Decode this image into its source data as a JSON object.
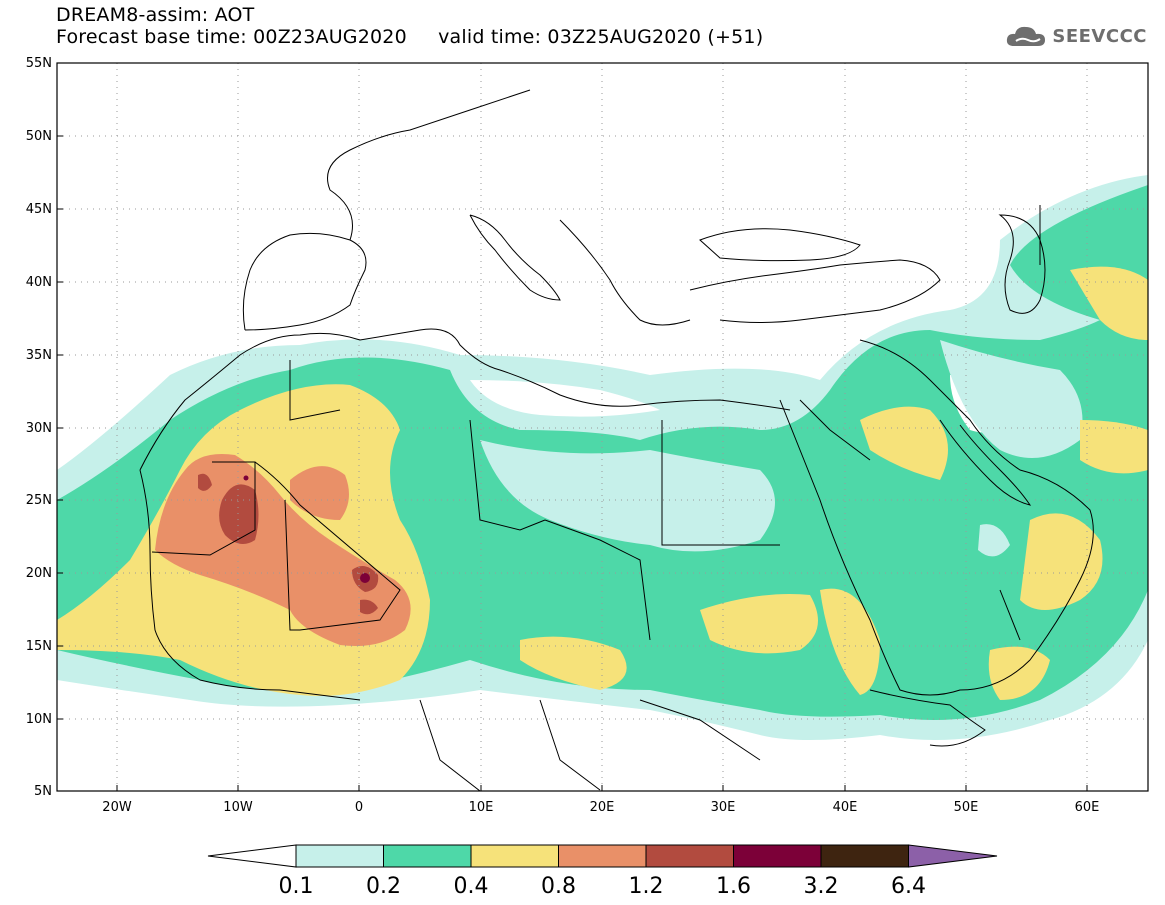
{
  "header": {
    "title": "DREAM8-assim: AOT",
    "base_time": "Forecast base time: 00Z23AUG2020",
    "valid_time": "valid time: 03Z25AUG2020 (+51)"
  },
  "logo": {
    "text": "SEEVCCC",
    "icon": "cloud-icon"
  },
  "map": {
    "lat_labels": [
      "55N",
      "50N",
      "45N",
      "40N",
      "35N",
      "30N",
      "25N",
      "20N",
      "15N",
      "10N",
      "5N"
    ],
    "lon_labels": [
      "20W",
      "10W",
      "0",
      "10E",
      "20E",
      "30E",
      "40E",
      "50E",
      "60E"
    ],
    "lat_range": [
      5,
      55
    ],
    "lon_range": [
      -25,
      65
    ],
    "grid": true
  },
  "colorbar": {
    "levels": [
      "0.1",
      "0.2",
      "0.4",
      "0.8",
      "1.2",
      "1.6",
      "3.2",
      "6.4"
    ],
    "colors": [
      "#ffffff",
      "#c6f0ea",
      "#4ed8a8",
      "#f6e27a",
      "#e99068",
      "#b24b3f",
      "#7c0038",
      "#3e2410",
      "#8c60a8"
    ]
  }
}
